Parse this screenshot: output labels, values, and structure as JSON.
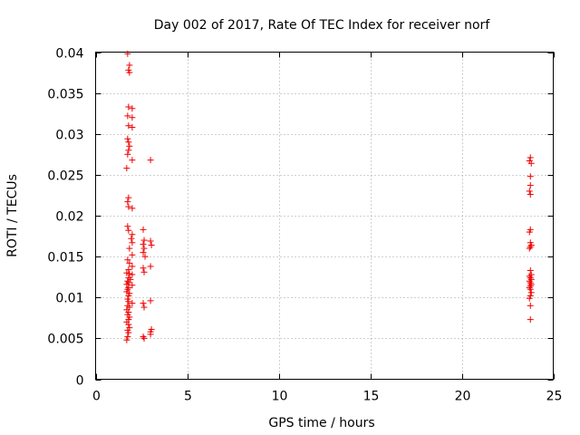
{
  "chart_data": {
    "type": "scatter",
    "title": "Day 002 of 2017, Rate Of TEC Index for receiver norf",
    "xlabel": "GPS time / hours",
    "ylabel": "ROTI / TECUs",
    "xlim": [
      0,
      25
    ],
    "ylim": [
      0,
      0.04
    ],
    "xticks": [
      0,
      5,
      10,
      15,
      20,
      25
    ],
    "xtick_labels": [
      "0",
      "5",
      "10",
      "15",
      "20",
      "25"
    ],
    "yticks": [
      0,
      0.005,
      0.01,
      0.015,
      0.02,
      0.025,
      0.03,
      0.035,
      0.04
    ],
    "ytick_labels": [
      "0",
      "0.005",
      "0.01",
      "0.015",
      "0.02",
      "0.025",
      "0.03",
      "0.035",
      "0.04"
    ],
    "grid": true,
    "marker": "+",
    "color": "#ee0000",
    "series": [
      {
        "name": "ROTI",
        "points": [
          [
            1.75,
            0.0398
          ],
          [
            1.85,
            0.0384
          ],
          [
            1.8,
            0.0378
          ],
          [
            1.85,
            0.0375
          ],
          [
            1.8,
            0.0333
          ],
          [
            2.0,
            0.0331
          ],
          [
            1.75,
            0.0322
          ],
          [
            2.0,
            0.032
          ],
          [
            1.8,
            0.031
          ],
          [
            2.0,
            0.0308
          ],
          [
            1.75,
            0.0294
          ],
          [
            1.8,
            0.029
          ],
          [
            1.85,
            0.0285
          ],
          [
            1.8,
            0.028
          ],
          [
            1.75,
            0.0275
          ],
          [
            2.0,
            0.0268
          ],
          [
            1.7,
            0.0258
          ],
          [
            1.8,
            0.0222
          ],
          [
            1.75,
            0.0217
          ],
          [
            1.8,
            0.0211
          ],
          [
            2.0,
            0.0209
          ],
          [
            1.75,
            0.0187
          ],
          [
            1.8,
            0.0182
          ],
          [
            2.0,
            0.0177
          ],
          [
            1.95,
            0.0172
          ],
          [
            2.0,
            0.0167
          ],
          [
            1.85,
            0.016
          ],
          [
            2.0,
            0.0152
          ],
          [
            1.75,
            0.0146
          ],
          [
            1.85,
            0.0142
          ],
          [
            2.0,
            0.0138
          ],
          [
            1.8,
            0.0134
          ],
          [
            1.7,
            0.013
          ],
          [
            1.85,
            0.0129
          ],
          [
            2.0,
            0.0128
          ],
          [
            1.8,
            0.0124
          ],
          [
            1.9,
            0.0122
          ],
          [
            1.75,
            0.012
          ],
          [
            1.8,
            0.0118
          ],
          [
            1.7,
            0.0116
          ],
          [
            2.0,
            0.0115
          ],
          [
            1.8,
            0.0112
          ],
          [
            1.75,
            0.011
          ],
          [
            1.7,
            0.0107
          ],
          [
            1.85,
            0.0105
          ],
          [
            1.8,
            0.0102
          ],
          [
            1.75,
            0.0098
          ],
          [
            1.8,
            0.0095
          ],
          [
            2.0,
            0.0093
          ],
          [
            1.75,
            0.009
          ],
          [
            1.85,
            0.0088
          ],
          [
            1.7,
            0.0085
          ],
          [
            1.8,
            0.0082
          ],
          [
            1.75,
            0.0079
          ],
          [
            1.85,
            0.0076
          ],
          [
            1.8,
            0.0073
          ],
          [
            1.7,
            0.007
          ],
          [
            1.8,
            0.0067
          ],
          [
            1.85,
            0.0063
          ],
          [
            1.75,
            0.006
          ],
          [
            1.8,
            0.0057
          ],
          [
            1.75,
            0.0052
          ],
          [
            1.7,
            0.0048
          ],
          [
            2.6,
            0.0183
          ],
          [
            2.65,
            0.017
          ],
          [
            2.6,
            0.0165
          ],
          [
            2.65,
            0.016
          ],
          [
            2.6,
            0.0155
          ],
          [
            2.7,
            0.015
          ],
          [
            2.6,
            0.0136
          ],
          [
            2.65,
            0.0131
          ],
          [
            2.6,
            0.0093
          ],
          [
            2.65,
            0.0088
          ],
          [
            2.6,
            0.0052
          ],
          [
            2.65,
            0.005
          ],
          [
            3.0,
            0.0268
          ],
          [
            3.0,
            0.0169
          ],
          [
            3.05,
            0.0164
          ],
          [
            3.0,
            0.0138
          ],
          [
            3.0,
            0.0096
          ],
          [
            3.05,
            0.0061
          ],
          [
            3.0,
            0.0058
          ],
          [
            3.0,
            0.0055
          ],
          [
            23.75,
            0.0271
          ],
          [
            23.7,
            0.0267
          ],
          [
            23.8,
            0.0264
          ],
          [
            23.75,
            0.0248
          ],
          [
            23.75,
            0.0237
          ],
          [
            23.7,
            0.023
          ],
          [
            23.75,
            0.0226
          ],
          [
            23.75,
            0.0183
          ],
          [
            23.7,
            0.018
          ],
          [
            23.75,
            0.0167
          ],
          [
            23.8,
            0.0164
          ],
          [
            23.75,
            0.0162
          ],
          [
            23.7,
            0.016
          ],
          [
            23.75,
            0.0133
          ],
          [
            23.8,
            0.0128
          ],
          [
            23.7,
            0.0126
          ],
          [
            23.75,
            0.0124
          ],
          [
            23.8,
            0.0122
          ],
          [
            23.7,
            0.012
          ],
          [
            23.75,
            0.0118
          ],
          [
            23.8,
            0.0116
          ],
          [
            23.75,
            0.0114
          ],
          [
            23.7,
            0.0112
          ],
          [
            23.75,
            0.011
          ],
          [
            23.8,
            0.0106
          ],
          [
            23.75,
            0.0102
          ],
          [
            23.7,
            0.0099
          ],
          [
            23.75,
            0.009
          ],
          [
            23.75,
            0.0073
          ]
        ]
      }
    ]
  }
}
